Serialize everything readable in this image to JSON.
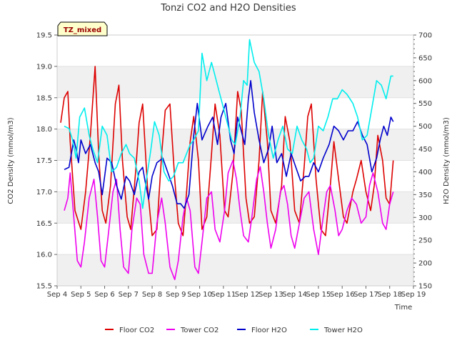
{
  "chart_data": {
    "type": "line",
    "title": "Tonzi CO2 and H2O Densities",
    "xlabel": "Time",
    "ylabel_left": "CO2 Density (mmol/m3)",
    "ylabel_right": "H2O Density (mmol/m3)",
    "tag": "TZ_mixed",
    "x_ticks": [
      "Sep 4",
      "Sep 5",
      "Sep 6",
      "Sep 7",
      "Sep 8",
      "Sep 9",
      "Sep 10",
      "Sep 11",
      "Sep 12",
      "Sep 13",
      "Sep 14",
      "Sep 15",
      "Sep 16",
      "Sep 17",
      "Sep 18",
      "Sep 19"
    ],
    "xlim": [
      4,
      19
    ],
    "ylim_left": [
      15.5,
      19.5
    ],
    "yticks_left": [
      "15.5",
      "16.0",
      "16.5",
      "17.0",
      "17.5",
      "18.0",
      "18.5",
      "19.0",
      "19.5"
    ],
    "ylim_right": [
      150,
      700
    ],
    "yticks_right": [
      "150",
      "200",
      "250",
      "300",
      "350",
      "400",
      "450",
      "500",
      "550",
      "600",
      "650",
      "700"
    ],
    "grid": "horizontal bands",
    "legend_position": "bottom",
    "series": [
      {
        "name": "Floor CO2",
        "axis": "left",
        "color": "#dd0000",
        "x": [
          4.15,
          4.3,
          4.45,
          4.55,
          4.75,
          5.0,
          5.2,
          5.4,
          5.6,
          5.75,
          5.9,
          6.05,
          6.25,
          6.45,
          6.6,
          6.75,
          6.95,
          7.1,
          7.3,
          7.45,
          7.6,
          7.8,
          8.0,
          8.2,
          8.4,
          8.55,
          8.75,
          8.95,
          9.1,
          9.3,
          9.45,
          9.6,
          9.75,
          9.95,
          10.1,
          10.3,
          10.5,
          10.65,
          10.85,
          11.05,
          11.2,
          11.4,
          11.6,
          11.75,
          11.95,
          12.1,
          12.3,
          12.5,
          12.65,
          12.85,
          13.0,
          13.2,
          13.45,
          13.6,
          13.8,
          14.0,
          14.2,
          14.4,
          14.55,
          14.7,
          14.9,
          15.1,
          15.3,
          15.5,
          15.65,
          15.85,
          16.05,
          16.2,
          16.45,
          16.6,
          16.8,
          17.0,
          17.2,
          17.35,
          17.5,
          17.7,
          17.85,
          18.0,
          18.15
        ],
        "values": [
          18.1,
          18.5,
          18.6,
          17.8,
          16.7,
          16.4,
          17.0,
          17.9,
          19.0,
          17.6,
          16.7,
          16.5,
          17.1,
          18.4,
          18.7,
          17.5,
          16.6,
          16.4,
          17.3,
          18.1,
          18.4,
          17.1,
          16.3,
          16.4,
          17.6,
          18.3,
          18.4,
          17.2,
          16.5,
          16.3,
          17.0,
          17.8,
          18.2,
          17.5,
          16.4,
          16.6,
          17.6,
          18.4,
          17.9,
          16.7,
          16.6,
          17.3,
          18.6,
          18.3,
          16.9,
          16.5,
          16.6,
          17.5,
          18.6,
          17.8,
          16.7,
          16.5,
          17.1,
          18.2,
          17.8,
          16.7,
          16.5,
          17.4,
          18.2,
          18.4,
          17.2,
          16.4,
          16.3,
          17.1,
          17.8,
          17.2,
          16.6,
          16.5,
          17.0,
          17.2,
          17.5,
          17.0,
          16.7,
          17.1,
          17.9,
          17.5,
          16.9,
          16.8,
          17.5
        ]
      },
      {
        "name": "Tower CO2",
        "axis": "left",
        "color": "#ee00ee",
        "x": [
          4.3,
          4.45,
          4.55,
          4.7,
          4.85,
          5.0,
          5.15,
          5.35,
          5.55,
          5.7,
          5.85,
          6.0,
          6.15,
          6.35,
          6.5,
          6.65,
          6.8,
          7.0,
          7.15,
          7.35,
          7.5,
          7.65,
          7.85,
          8.0,
          8.2,
          8.4,
          8.55,
          8.75,
          8.95,
          9.1,
          9.3,
          9.45,
          9.6,
          9.8,
          9.95,
          10.1,
          10.3,
          10.5,
          10.65,
          10.85,
          11.05,
          11.2,
          11.4,
          11.55,
          11.7,
          11.85,
          12.05,
          12.2,
          12.4,
          12.55,
          12.7,
          12.85,
          13.0,
          13.2,
          13.4,
          13.55,
          13.7,
          13.85,
          14.0,
          14.2,
          14.4,
          14.6,
          14.8,
          15.0,
          15.2,
          15.35,
          15.5,
          15.7,
          15.85,
          16.0,
          16.2,
          16.4,
          16.6,
          16.8,
          17.0,
          17.15,
          17.3,
          17.5,
          17.7,
          17.85,
          18.0,
          18.15
        ],
        "values": [
          16.7,
          16.9,
          17.3,
          16.6,
          15.9,
          15.8,
          16.2,
          16.9,
          17.2,
          16.6,
          15.9,
          15.8,
          16.3,
          17.0,
          17.2,
          16.4,
          15.8,
          15.7,
          16.4,
          16.9,
          16.8,
          16.0,
          15.7,
          15.7,
          16.5,
          16.9,
          16.5,
          15.8,
          15.6,
          15.9,
          16.6,
          16.9,
          16.7,
          15.8,
          15.7,
          16.2,
          16.9,
          17.0,
          16.4,
          16.2,
          16.7,
          17.3,
          17.5,
          17.2,
          16.7,
          16.3,
          16.2,
          16.6,
          17.2,
          17.4,
          17.0,
          16.5,
          16.1,
          16.4,
          17.0,
          17.1,
          16.8,
          16.3,
          16.1,
          16.5,
          16.9,
          17.0,
          16.4,
          16.0,
          16.6,
          17.0,
          17.1,
          16.7,
          16.3,
          16.4,
          16.7,
          16.9,
          16.8,
          16.5,
          16.6,
          17.1,
          17.3,
          17.0,
          16.5,
          16.4,
          16.8,
          17.0
        ]
      },
      {
        "name": "Floor H2O",
        "axis": "right",
        "color": "#0000cc",
        "x": [
          4.3,
          4.5,
          4.6,
          4.7,
          4.8,
          4.9,
          5.0,
          5.2,
          5.4,
          5.6,
          5.75,
          5.9,
          6.1,
          6.3,
          6.5,
          6.7,
          6.9,
          7.05,
          7.25,
          7.45,
          7.6,
          7.7,
          7.85,
          8.0,
          8.2,
          8.45,
          8.65,
          8.85,
          9.05,
          9.2,
          9.35,
          9.55,
          9.75,
          9.9,
          10.1,
          10.35,
          10.55,
          10.75,
          10.9,
          11.1,
          11.3,
          11.45,
          11.6,
          11.75,
          11.9,
          12.05,
          12.15,
          12.3,
          12.5,
          12.7,
          12.9,
          13.05,
          13.25,
          13.45,
          13.65,
          13.85,
          14.05,
          14.25,
          14.45,
          14.6,
          14.8,
          15.0,
          15.2,
          15.45,
          15.65,
          15.85,
          16.05,
          16.25,
          16.45,
          16.65,
          16.85,
          17.05,
          17.25,
          17.45,
          17.6,
          17.75,
          17.9,
          18.05,
          18.15
        ],
        "values": [
          405,
          410,
          440,
          470,
          450,
          420,
          470,
          440,
          460,
          420,
          400,
          350,
          430,
          420,
          370,
          340,
          390,
          380,
          350,
          400,
          410,
          380,
          340,
          390,
          420,
          430,
          400,
          370,
          330,
          330,
          320,
          350,
          480,
          550,
          470,
          500,
          520,
          460,
          520,
          550,
          470,
          440,
          520,
          490,
          460,
          560,
          600,
          530,
          470,
          420,
          450,
          500,
          420,
          440,
          390,
          440,
          410,
          380,
          390,
          390,
          420,
          400,
          430,
          460,
          500,
          490,
          470,
          490,
          490,
          510,
          480,
          460,
          400,
          430,
          470,
          500,
          480,
          520,
          510
        ]
      },
      {
        "name": "Tower H2O",
        "axis": "right",
        "color": "#00eeee",
        "x": [
          4.3,
          4.5,
          4.65,
          4.8,
          4.95,
          5.15,
          5.35,
          5.5,
          5.7,
          5.9,
          6.1,
          6.3,
          6.5,
          6.7,
          6.9,
          7.05,
          7.25,
          7.45,
          7.6,
          7.75,
          7.95,
          8.1,
          8.3,
          8.5,
          8.7,
          8.9,
          9.1,
          9.3,
          9.45,
          9.6,
          9.75,
          9.95,
          10.1,
          10.3,
          10.5,
          10.6,
          10.8,
          11.0,
          11.2,
          11.35,
          11.5,
          11.7,
          11.85,
          12.0,
          12.1,
          12.3,
          12.5,
          12.7,
          12.9,
          13.1,
          13.3,
          13.5,
          13.7,
          13.9,
          14.1,
          14.3,
          14.5,
          14.65,
          14.8,
          15.0,
          15.2,
          15.4,
          15.6,
          15.8,
          16.0,
          16.2,
          16.45,
          16.65,
          16.85,
          17.05,
          17.25,
          17.45,
          17.65,
          17.85,
          18.05,
          18.15
        ],
        "values": [
          500,
          495,
          470,
          430,
          520,
          540,
          480,
          450,
          420,
          500,
          480,
          400,
          410,
          440,
          460,
          440,
          430,
          380,
          320,
          380,
          450,
          510,
          480,
          400,
          380,
          390,
          420,
          420,
          440,
          460,
          470,
          490,
          660,
          600,
          640,
          620,
          580,
          540,
          500,
          470,
          460,
          520,
          600,
          590,
          690,
          640,
          620,
          560,
          480,
          430,
          470,
          500,
          450,
          440,
          500,
          470,
          450,
          420,
          430,
          500,
          490,
          520,
          560,
          560,
          580,
          570,
          550,
          520,
          470,
          480,
          540,
          600,
          590,
          560,
          610,
          610
        ]
      }
    ]
  }
}
